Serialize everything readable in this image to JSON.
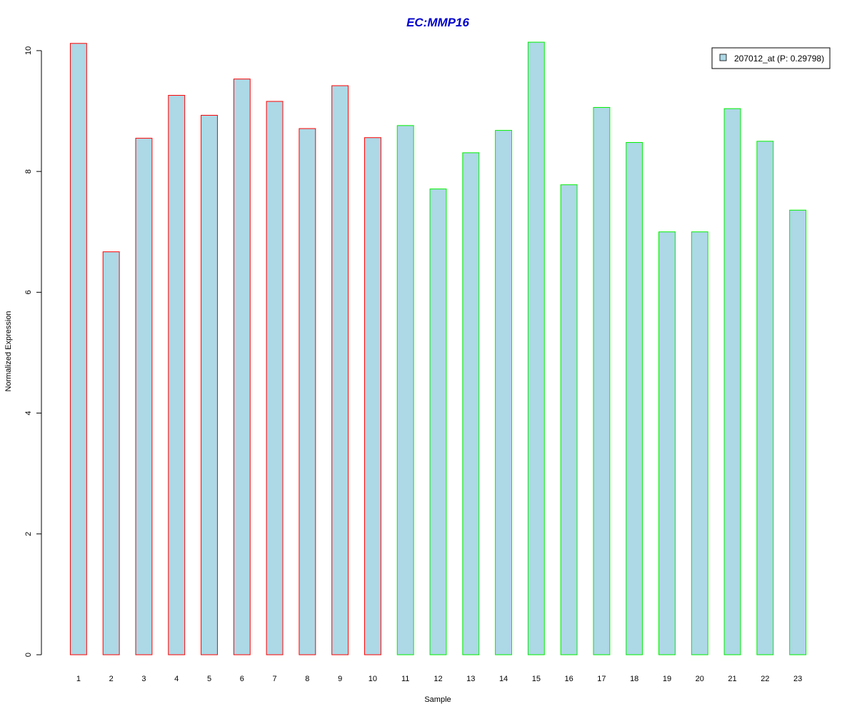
{
  "chart_data": {
    "type": "bar",
    "title": "EC:MMP16",
    "xlabel": "Sample",
    "ylabel": "Normalized Expression",
    "ylim": [
      0,
      10.2
    ],
    "yticks": [
      "0",
      "2",
      "4",
      "6",
      "8",
      "10"
    ],
    "categories": [
      "1",
      "2",
      "3",
      "4",
      "5",
      "6",
      "7",
      "8",
      "9",
      "10",
      "11",
      "12",
      "13",
      "14",
      "15",
      "16",
      "17",
      "18",
      "19",
      "20",
      "21",
      "22",
      "23"
    ],
    "series": [
      {
        "name": "207012_at (P: 0.29798)",
        "values": [
          10.12,
          6.67,
          8.55,
          9.26,
          8.93,
          9.53,
          9.16,
          8.71,
          9.42,
          8.56,
          8.76,
          7.71,
          8.31,
          8.68,
          10.14,
          7.78,
          9.06,
          8.48,
          7.0,
          7.0,
          9.04,
          8.5,
          7.36
        ]
      }
    ],
    "group_border_colors": [
      "#ff0000",
      "#ff0000",
      "#ff0000",
      "#ff0000",
      "#ff0000",
      "#ff0000",
      "#ff0000",
      "#ff0000",
      "#ff0000",
      "#ff0000",
      "#00ee00",
      "#00ee00",
      "#00ee00",
      "#00ee00",
      "#00ee00",
      "#00ee00",
      "#00ee00",
      "#00ee00",
      "#00ee00",
      "#00ee00",
      "#00ee00",
      "#00ee00",
      "#00ee00"
    ],
    "bar_fill": "#add8e6",
    "title_color": "#0000cd",
    "grid": false,
    "legend_position": "top-right"
  }
}
